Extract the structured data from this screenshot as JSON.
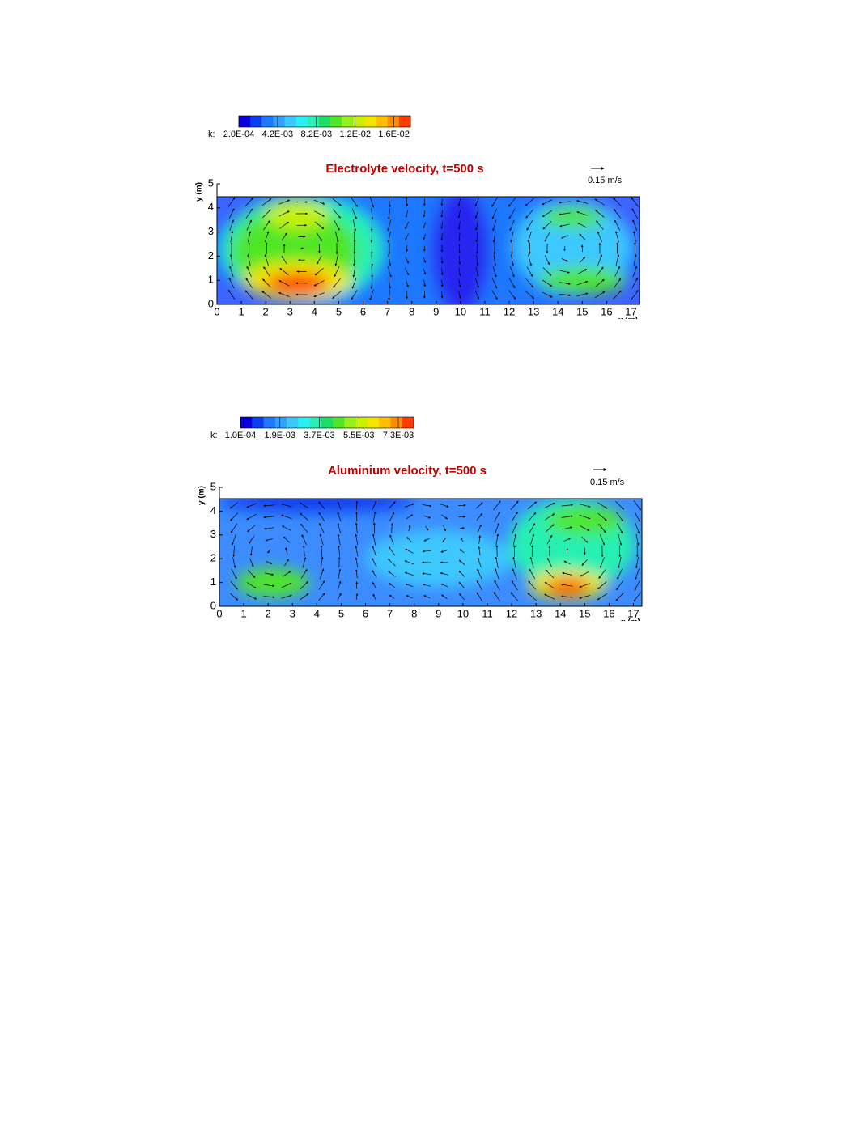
{
  "chart_data": [
    {
      "type": "contour",
      "title": "Electrolyte velocity, t=500 s",
      "colorbar": {
        "prefix": "k:",
        "lim": [
          0.0002,
          0.0179
        ],
        "colors": [
          "#0a00d8",
          "#0a3cf0",
          "#1e78ff",
          "#32a0ff",
          "#3cc8ff",
          "#28f0f0",
          "#28f0b4",
          "#1edc64",
          "#50e628",
          "#96f01e",
          "#c8f000",
          "#f0e600",
          "#ffbe00",
          "#ff8c00",
          "#ff3c00"
        ],
        "ticks": [
          {
            "value": 0.0002,
            "label": "2.0E-04"
          },
          {
            "value": 0.0042,
            "label": "4.2E-03"
          },
          {
            "value": 0.0082,
            "label": "8.2E-03"
          },
          {
            "value": 0.0122,
            "label": "1.2E-02"
          },
          {
            "value": 0.0162,
            "label": "1.6E-02"
          }
        ]
      },
      "reference_arrow_label": "0.15 m/s",
      "xlabel": "x (m)",
      "ylabel": "y (m)",
      "xlim": [
        0,
        17.35
      ],
      "ylim": [
        0,
        5
      ],
      "xticks": [
        0,
        1,
        2,
        3,
        4,
        5,
        6,
        7,
        8,
        9,
        10,
        11,
        12,
        13,
        14,
        15,
        16,
        17
      ],
      "yticks": [
        0,
        1,
        2,
        3,
        4,
        5
      ]
    },
    {
      "type": "contour",
      "title": "Aluminium velocity, t=500 s",
      "colorbar": {
        "prefix": "k:",
        "lim": [
          0.0001,
          0.008
        ],
        "colors": [
          "#0a00d8",
          "#0a3cf0",
          "#1e78ff",
          "#32a0ff",
          "#3cc8ff",
          "#28f0f0",
          "#28f0b4",
          "#1edc64",
          "#50e628",
          "#96f01e",
          "#c8f000",
          "#f0e600",
          "#ffbe00",
          "#ff8c00",
          "#ff3c00"
        ],
        "ticks": [
          {
            "value": 0.0001,
            "label": "1.0E-04"
          },
          {
            "value": 0.0019,
            "label": "1.9E-03"
          },
          {
            "value": 0.0037,
            "label": "3.7E-03"
          },
          {
            "value": 0.0055,
            "label": "5.5E-03"
          },
          {
            "value": 0.0073,
            "label": "7.3E-03"
          }
        ]
      },
      "reference_arrow_label": "0.15 m/s",
      "xlabel": "x (m)",
      "ylabel": "y (m)",
      "xlim": [
        0,
        17.35
      ],
      "ylim": [
        0,
        5
      ],
      "xticks": [
        0,
        1,
        2,
        3,
        4,
        5,
        6,
        7,
        8,
        9,
        10,
        11,
        12,
        13,
        14,
        15,
        16,
        17
      ],
      "yticks": [
        0,
        1,
        2,
        3,
        4,
        5
      ]
    }
  ]
}
